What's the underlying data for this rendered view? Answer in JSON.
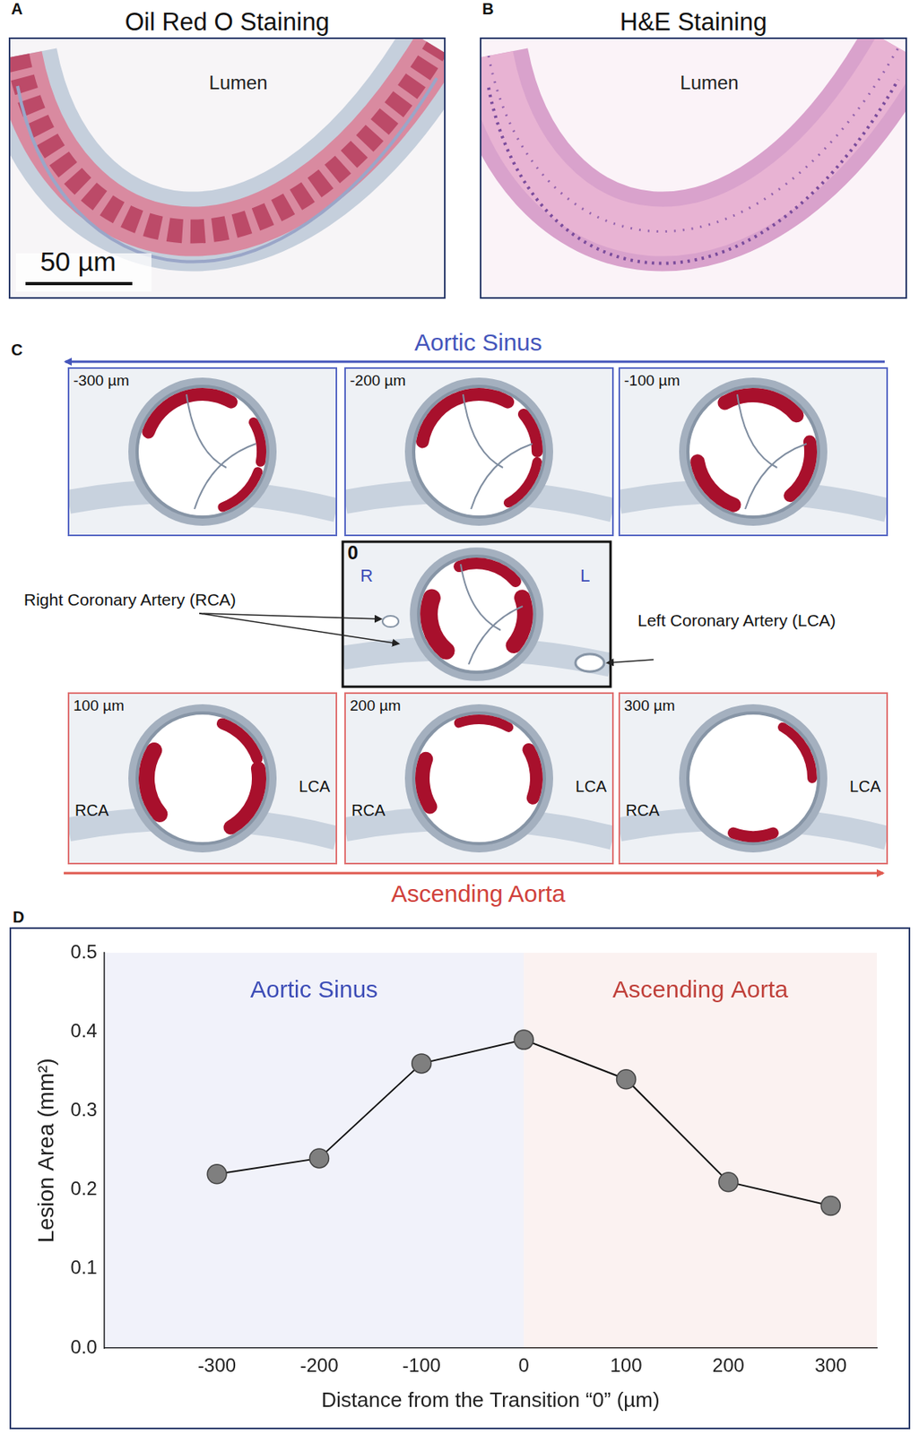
{
  "figure": {
    "panels": [
      {
        "letter": "A",
        "title": "Oil Red O Staining",
        "texts": [
          "Lumen"
        ],
        "scale_bar": "50 µm"
      },
      {
        "letter": "B",
        "title": "H&E Staining",
        "texts": [
          "Lumen"
        ]
      },
      {
        "letter": "C",
        "top_arrow": "Aortic Sinus",
        "bottom_arrow": "Ascending Aorta",
        "sections": [
          {
            "label": "-300 µm"
          },
          {
            "label": "-200 µm"
          },
          {
            "label": "-100 µm"
          },
          {
            "label": "0",
            "markers": [
              "R",
              "L"
            ],
            "callouts": [
              "Right Coronary Artery (RCA)",
              "Left Coronary Artery (LCA)"
            ]
          },
          {
            "label": "100 µm",
            "markers": [
              "RCA",
              "LCA"
            ]
          },
          {
            "label": "200 µm",
            "markers": [
              "RCA",
              "LCA"
            ]
          },
          {
            "label": "300 µm",
            "markers": [
              "RCA",
              "LCA"
            ]
          }
        ]
      },
      {
        "letter": "D"
      }
    ]
  },
  "chart_data": {
    "type": "line",
    "x": [
      -300,
      -200,
      -100,
      0,
      100,
      200,
      300
    ],
    "values": [
      0.22,
      0.24,
      0.36,
      0.39,
      0.34,
      0.21,
      0.18
    ],
    "color": "#7f7f7f",
    "marker": "circle",
    "x_label": "Distance from the Transition “0” (µm)",
    "y_label": "Lesion Area (mm²)",
    "xlim": [
      -410,
      345
    ],
    "xticks": [
      -300,
      -200,
      -100,
      0,
      100,
      200,
      300
    ],
    "ylim": [
      0,
      0.5
    ],
    "yticks": [
      {
        "value": 0,
        "label": "0.0"
      },
      {
        "value": 0.1,
        "label": "0.1"
      },
      {
        "value": 0.2,
        "label": "0.2"
      },
      {
        "value": 0.3,
        "label": "0.3"
      },
      {
        "value": 0.4,
        "label": "0.4"
      },
      {
        "value": 0.5,
        "label": "0.5"
      }
    ],
    "grid": false,
    "regions": [
      {
        "name": "Aortic Sinus",
        "color": "#3d4db7",
        "range": [
          -410,
          0
        ]
      },
      {
        "name": "Ascending Aorta",
        "color": "#c0403a",
        "range": [
          0,
          345
        ]
      }
    ]
  }
}
